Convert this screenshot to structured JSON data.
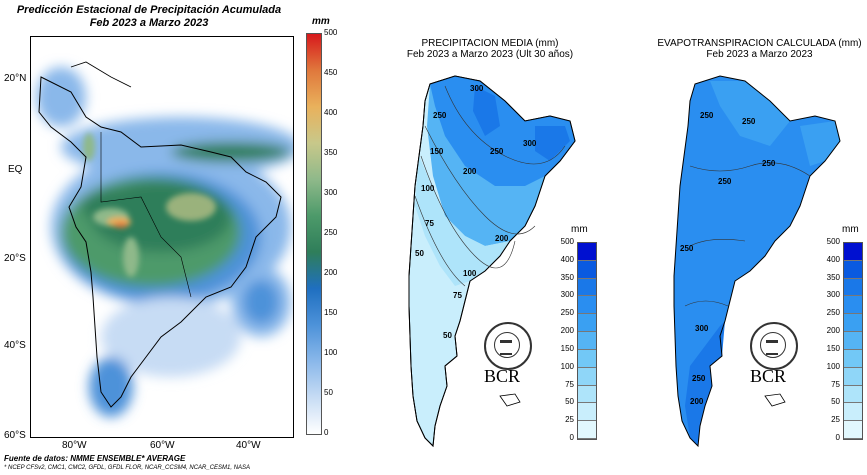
{
  "panel1": {
    "title_line1": "Predicción Estacional de Precipitación Acumulada",
    "title_line2": "Feb 2023 a Marzo 2023",
    "unit": "mm",
    "lat_labels": [
      "20°N",
      "EQ",
      "20°S",
      "40°S",
      "60°S"
    ],
    "lon_labels": [
      "80°W",
      "60°W",
      "40°W"
    ],
    "colorbar_ticks": [
      "500",
      "450",
      "400",
      "350",
      "300",
      "250",
      "200",
      "150",
      "100",
      "50",
      "0"
    ],
    "colorbar_colors": [
      "#d7191c",
      "#e0783c",
      "#e9b15c",
      "#c8c88a",
      "#8fb98a",
      "#4d9a6a",
      "#2f7e5a",
      "#1f6fc0",
      "#4d92d9",
      "#8ab8ea",
      "#c7dcf4",
      "#ffffff"
    ],
    "source_line1": "Fuente de datos: NMME ENSEMBLE* AVERAGE",
    "source_line2": "* NCEP CFSv2, CMC1, CMC2, GFDL, GFDL FLOR, NCAR_CCSM4, NCAR_CESM1, NASA"
  },
  "panel2": {
    "title_line1": "PRECIPITACION MEDIA (mm)",
    "title_line2": "Feb 2023 a Marzo 2023 (Ult 30 años)",
    "unit": "mm",
    "contour_labels": [
      "300",
      "250",
      "200",
      "150",
      "100",
      "75",
      "50",
      "300",
      "250",
      "200",
      "100",
      "75",
      "50"
    ],
    "logo_text": "BCR"
  },
  "panel3": {
    "title_line1": "EVAPOTRANSPIRACION CALCULADA (mm)",
    "title_line2": "Feb 2023 a Marzo 2023",
    "unit": "mm",
    "contour_labels": [
      "250",
      "250",
      "250",
      "250",
      "250",
      "300",
      "250",
      "200"
    ],
    "logo_text": "BCR"
  },
  "arg_colorbar": {
    "ticks": [
      "500",
      "400",
      "350",
      "300",
      "250",
      "200",
      "150",
      "100",
      "75",
      "50",
      "25",
      "0"
    ],
    "colors": [
      "#0010d0",
      "#0a5ae0",
      "#1a78e8",
      "#2a8ef0",
      "#3aa0f2",
      "#55b4f4",
      "#72c8f6",
      "#8fd6f8",
      "#aee4fa",
      "#c9eefc",
      "#e2f8fe",
      "#ffffff"
    ]
  }
}
